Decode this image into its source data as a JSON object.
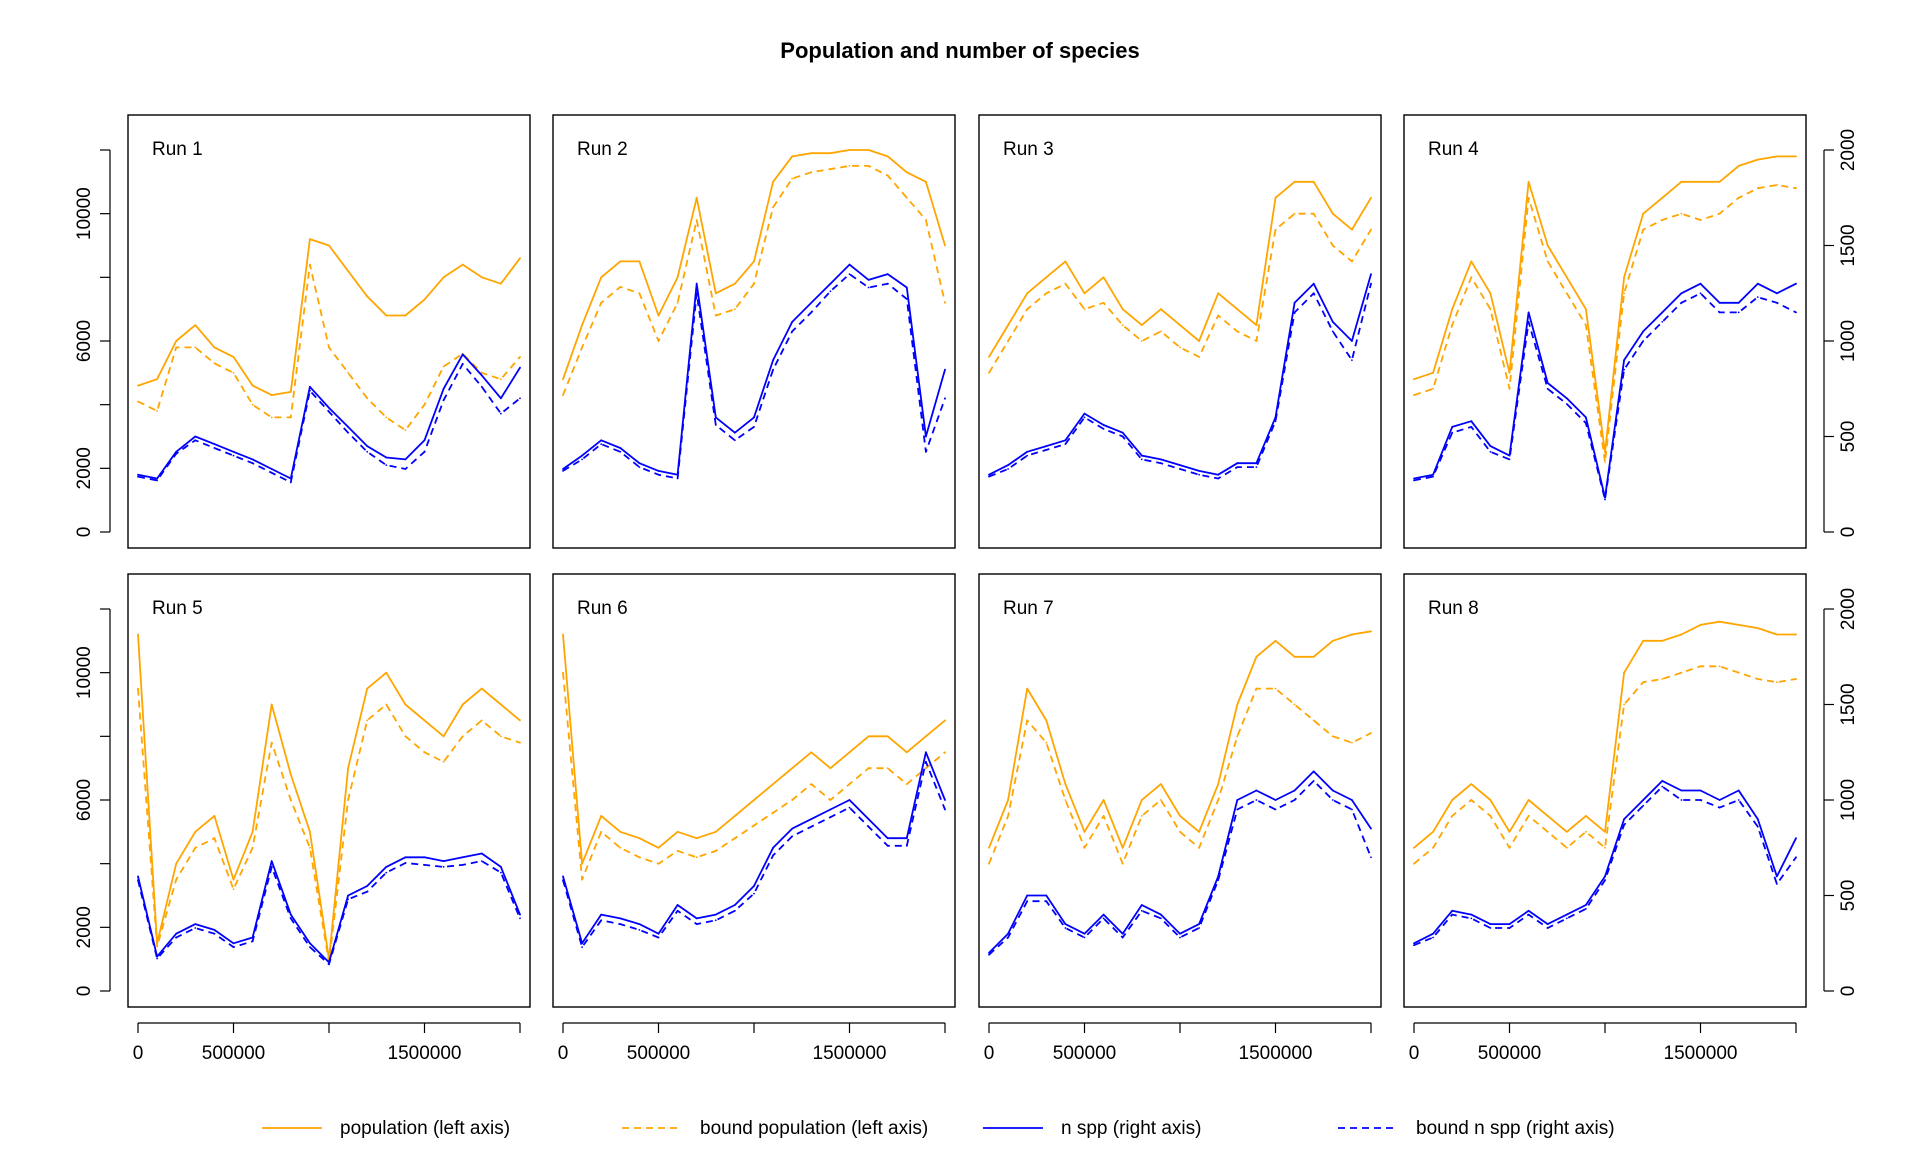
{
  "title": "Population and number of species",
  "legend": [
    {
      "label": "population (left axis)",
      "color": "#FFA500",
      "dashed": false
    },
    {
      "label": "bound population (left axis)",
      "color": "#FFA500",
      "dashed": true
    },
    {
      "label": "n spp (right axis)",
      "color": "#0000FF",
      "dashed": false
    },
    {
      "label": "bound n spp (right axis)",
      "color": "#0000FF",
      "dashed": true
    }
  ],
  "colors": {
    "population": "#FFA500",
    "nspp": "#0000FF"
  },
  "chart_data": {
    "type": "line",
    "layout": "2x4 small multiples",
    "x_axis": {
      "range": [
        0,
        2000000
      ],
      "ticks": [
        0,
        500000,
        1000000,
        1500000,
        2000000
      ],
      "tick_labels": [
        "0",
        "500000",
        "",
        "1500000",
        ""
      ]
    },
    "left_axis": {
      "range": [
        0,
        12000
      ],
      "ticks": [
        0,
        2000,
        6000,
        10000
      ],
      "tick_labels": [
        "0",
        "2000",
        "6000",
        "10000"
      ]
    },
    "right_axis": {
      "range": [
        0,
        2000
      ],
      "ticks": [
        0,
        500,
        1000,
        1500,
        2000
      ],
      "tick_labels": [
        "0",
        "500",
        "1000",
        "1500",
        "2000"
      ]
    },
    "x": [
      0,
      100000,
      200000,
      300000,
      400000,
      500000,
      600000,
      700000,
      800000,
      900000,
      1000000,
      1100000,
      1200000,
      1300000,
      1400000,
      1500000,
      1600000,
      1700000,
      1800000,
      1900000,
      2000000
    ],
    "panels": [
      {
        "label": "Run 1",
        "population": [
          4600,
          4800,
          6000,
          6500,
          5800,
          5500,
          4600,
          4300,
          4400,
          9200,
          9000,
          8200,
          7400,
          6800,
          6800,
          7300,
          8000,
          8400,
          8000,
          7800,
          8600
        ],
        "bound_population": [
          4100,
          3800,
          5800,
          5800,
          5300,
          5000,
          4000,
          3600,
          3600,
          8400,
          5800,
          5000,
          4200,
          3600,
          3200,
          4000,
          5200,
          5600,
          5000,
          4800,
          5500
        ],
        "n_spp": [
          300,
          280,
          420,
          500,
          460,
          420,
          380,
          330,
          280,
          760,
          650,
          550,
          450,
          390,
          380,
          480,
          750,
          930,
          820,
          700,
          860
        ],
        "bound_n_spp": [
          290,
          270,
          410,
          480,
          440,
          400,
          360,
          310,
          260,
          740,
          630,
          520,
          420,
          350,
          330,
          420,
          690,
          880,
          760,
          620,
          700
        ]
      },
      {
        "label": "Run 2",
        "population": [
          4800,
          6500,
          8000,
          8500,
          8500,
          6800,
          8000,
          10500,
          7500,
          7800,
          8500,
          11000,
          11800,
          11900,
          11900,
          12000,
          12000,
          11800,
          11300,
          11000,
          9000
        ],
        "bound_population": [
          4300,
          5800,
          7200,
          7700,
          7500,
          6000,
          7200,
          9800,
          6800,
          7000,
          7800,
          10200,
          11100,
          11300,
          11400,
          11500,
          11500,
          11200,
          10500,
          9800,
          7200
        ],
        "n_spp": [
          330,
          400,
          480,
          440,
          360,
          320,
          300,
          1300,
          600,
          520,
          600,
          900,
          1100,
          1200,
          1300,
          1400,
          1320,
          1350,
          1280,
          500,
          850
        ],
        "bound_n_spp": [
          320,
          380,
          460,
          420,
          340,
          300,
          280,
          1250,
          560,
          480,
          550,
          850,
          1050,
          1150,
          1260,
          1350,
          1280,
          1300,
          1220,
          420,
          700
        ]
      },
      {
        "label": "Run 3",
        "population": [
          5500,
          6500,
          7500,
          8000,
          8500,
          7500,
          8000,
          7000,
          6500,
          7000,
          6500,
          6000,
          7500,
          7000,
          6500,
          10500,
          11000,
          11000,
          10000,
          9500,
          10500
        ],
        "bound_population": [
          5000,
          6000,
          7000,
          7500,
          7800,
          7000,
          7200,
          6500,
          6000,
          6300,
          5800,
          5500,
          6800,
          6300,
          6000,
          9500,
          10000,
          10000,
          9000,
          8500,
          9500
        ],
        "n_spp": [
          300,
          350,
          420,
          450,
          480,
          620,
          560,
          520,
          400,
          380,
          350,
          320,
          300,
          360,
          360,
          600,
          1200,
          1300,
          1100,
          1000,
          1350
        ],
        "bound_n_spp": [
          290,
          330,
          400,
          430,
          460,
          600,
          540,
          500,
          380,
          360,
          330,
          300,
          280,
          340,
          340,
          580,
          1150,
          1250,
          1050,
          900,
          1300
        ]
      },
      {
        "label": "Run 4",
        "population": [
          4800,
          5000,
          7000,
          8500,
          7500,
          5000,
          11000,
          9000,
          8000,
          7000,
          2500,
          8000,
          10000,
          10500,
          11000,
          11000,
          11000,
          11500,
          11700,
          11800,
          11800
        ],
        "bound_population": [
          4300,
          4500,
          6500,
          8000,
          7000,
          4500,
          10500,
          8500,
          7500,
          6500,
          2200,
          7500,
          9500,
          9800,
          10000,
          9800,
          10000,
          10500,
          10800,
          10900,
          10800
        ],
        "n_spp": [
          280,
          300,
          550,
          580,
          450,
          400,
          1150,
          780,
          700,
          600,
          180,
          900,
          1050,
          1150,
          1250,
          1300,
          1200,
          1200,
          1300,
          1250,
          1300
        ],
        "bound_n_spp": [
          270,
          290,
          520,
          550,
          420,
          380,
          1100,
          750,
          670,
          570,
          170,
          850,
          1000,
          1100,
          1200,
          1250,
          1150,
          1150,
          1230,
          1200,
          1150
        ]
      },
      {
        "label": "Run 5",
        "population": [
          11200,
          1500,
          4000,
          5000,
          5500,
          3500,
          5000,
          9000,
          6800,
          5000,
          1000,
          7000,
          9500,
          10000,
          9000,
          8500,
          8000,
          9000,
          9500,
          9000,
          8500
        ],
        "bound_population": [
          9500,
          1400,
          3500,
          4500,
          4800,
          3200,
          4500,
          7800,
          6000,
          4500,
          900,
          6000,
          8500,
          9000,
          8000,
          7500,
          7200,
          8000,
          8500,
          8000,
          7800
        ],
        "n_spp": [
          600,
          180,
          300,
          350,
          320,
          250,
          280,
          680,
          400,
          250,
          150,
          500,
          550,
          650,
          700,
          700,
          680,
          700,
          720,
          650,
          400
        ],
        "bound_n_spp": [
          580,
          170,
          280,
          330,
          300,
          230,
          260,
          650,
          380,
          230,
          140,
          480,
          520,
          620,
          670,
          660,
          650,
          660,
          680,
          620,
          380
        ]
      },
      {
        "label": "Run 6",
        "population": [
          11200,
          4000,
          5500,
          5000,
          4800,
          4500,
          5000,
          4800,
          5000,
          5500,
          6000,
          6500,
          7000,
          7500,
          7000,
          7500,
          8000,
          8000,
          7500,
          8000,
          8500
        ],
        "bound_population": [
          10000,
          3500,
          5000,
          4500,
          4200,
          4000,
          4400,
          4200,
          4400,
          4800,
          5200,
          5600,
          6000,
          6500,
          6000,
          6500,
          7000,
          7000,
          6500,
          7000,
          7500
        ],
        "n_spp": [
          600,
          250,
          400,
          380,
          350,
          300,
          450,
          380,
          400,
          450,
          550,
          750,
          850,
          900,
          950,
          1000,
          900,
          800,
          800,
          1250,
          1000
        ],
        "bound_n_spp": [
          580,
          230,
          370,
          350,
          320,
          280,
          420,
          350,
          370,
          420,
          510,
          710,
          810,
          860,
          910,
          960,
          860,
          760,
          760,
          1200,
          950
        ]
      },
      {
        "label": "Run 7",
        "population": [
          4500,
          6000,
          9500,
          8500,
          6500,
          5000,
          6000,
          4500,
          6000,
          6500,
          5500,
          5000,
          6500,
          9000,
          10500,
          11000,
          10500,
          10500,
          11000,
          11200,
          11300
        ],
        "bound_population": [
          4000,
          5500,
          8500,
          7800,
          6000,
          4500,
          5500,
          4000,
          5500,
          6000,
          5000,
          4500,
          6000,
          8000,
          9500,
          9500,
          9000,
          8500,
          8000,
          7800,
          8100
        ],
        "n_spp": [
          200,
          300,
          500,
          500,
          350,
          300,
          400,
          300,
          450,
          400,
          300,
          350,
          600,
          1000,
          1050,
          1000,
          1050,
          1150,
          1050,
          1000,
          850
        ],
        "bound_n_spp": [
          190,
          280,
          470,
          470,
          330,
          280,
          380,
          280,
          420,
          380,
          280,
          330,
          580,
          950,
          1000,
          950,
          1000,
          1100,
          1000,
          950,
          700
        ]
      },
      {
        "label": "Run 8",
        "population": [
          4500,
          5000,
          6000,
          6500,
          6000,
          5000,
          6000,
          5500,
          5000,
          5500,
          5000,
          10000,
          11000,
          11000,
          11200,
          11500,
          11600,
          11500,
          11400,
          11200,
          11200
        ],
        "bound_population": [
          4000,
          4500,
          5500,
          6000,
          5500,
          4500,
          5500,
          5000,
          4500,
          5000,
          4500,
          9000,
          9700,
          9800,
          10000,
          10200,
          10200,
          10000,
          9800,
          9700,
          9800
        ],
        "n_spp": [
          250,
          300,
          420,
          400,
          350,
          350,
          420,
          350,
          400,
          450,
          600,
          900,
          1000,
          1100,
          1050,
          1050,
          1000,
          1050,
          900,
          600,
          800
        ],
        "bound_n_spp": [
          240,
          280,
          400,
          380,
          330,
          330,
          400,
          330,
          380,
          430,
          580,
          870,
          970,
          1070,
          1000,
          1000,
          960,
          1000,
          860,
          560,
          700
        ]
      }
    ]
  }
}
